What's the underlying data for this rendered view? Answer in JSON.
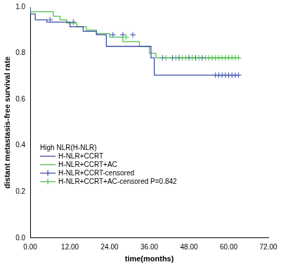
{
  "chart_data": {
    "type": "line",
    "x_label": "time(months)",
    "y_label": "distant metastasis-free survival rate",
    "xlim": [
      0,
      72
    ],
    "xticks": [
      {
        "value": 0,
        "label": "0.00"
      },
      {
        "value": 12,
        "label": "12.00"
      },
      {
        "value": 24,
        "label": "24.00"
      },
      {
        "value": 36,
        "label": "36.00"
      },
      {
        "value": 48,
        "label": "48.00"
      },
      {
        "value": 60,
        "label": "60.00"
      },
      {
        "value": 72,
        "label": "72.00"
      }
    ],
    "ylim": [
      0,
      1
    ],
    "yticks": [
      {
        "value": 0,
        "label": "0.0"
      },
      0.2,
      0.4,
      0.6,
      0.8,
      {
        "value": 1,
        "label": "1.0"
      }
    ],
    "grid": false,
    "legend": "lower left",
    "legend_title": "High NLR(H-NLR)",
    "annotation": "P=0.842",
    "series": [
      {
        "name": "H-NLR+CCRT",
        "type": "line",
        "line_style": "step",
        "color": "#3a4ca6",
        "x": [
          0,
          1.5,
          5,
          12,
          16,
          20,
          23,
          36.5,
          37.5,
          55.5,
          63
        ],
        "values": [
          1.0,
          0.97,
          0.945,
          0.935,
          0.915,
          0.895,
          0.88,
          0.83,
          0.78,
          0.705,
          0.705
        ]
      },
      {
        "name": "H-NLR+CCRT+AC",
        "type": "line",
        "line_style": "step",
        "color": "#4cbf4c",
        "x": [
          0,
          7,
          9,
          11,
          14,
          17,
          20,
          24,
          28,
          33,
          36,
          38,
          40,
          63
        ],
        "values": [
          1.0,
          0.98,
          0.96,
          0.945,
          0.93,
          0.915,
          0.9,
          0.885,
          0.87,
          0.85,
          0.83,
          0.8,
          0.78,
          0.78
        ]
      },
      {
        "name": "H-NLR+CCRT-censored",
        "type": "scatter",
        "marker": "plus",
        "color": "#3a4ca6",
        "x": [
          6,
          13,
          25,
          28,
          31,
          40,
          43,
          45,
          48,
          50,
          52,
          56,
          57,
          58,
          59,
          60,
          61,
          62,
          63
        ],
        "values": [
          0.945,
          0.935,
          0.88,
          0.88,
          0.88,
          0.78,
          0.78,
          0.78,
          0.78,
          0.78,
          0.78,
          0.705,
          0.705,
          0.705,
          0.705,
          0.705,
          0.705,
          0.705,
          0.705
        ]
      },
      {
        "name": "H-NLR+CCRT+AC-censored",
        "type": "scatter",
        "marker": "plus",
        "color": "#4cbf4c",
        "x": [
          29,
          41,
          44,
          46,
          47,
          49,
          51,
          53,
          54,
          55,
          56,
          57,
          58,
          59,
          60,
          61,
          62,
          63
        ],
        "values": [
          0.87,
          0.78,
          0.78,
          0.78,
          0.78,
          0.78,
          0.78,
          0.78,
          0.78,
          0.78,
          0.78,
          0.78,
          0.78,
          0.78,
          0.78,
          0.78,
          0.78,
          0.78
        ]
      }
    ]
  }
}
